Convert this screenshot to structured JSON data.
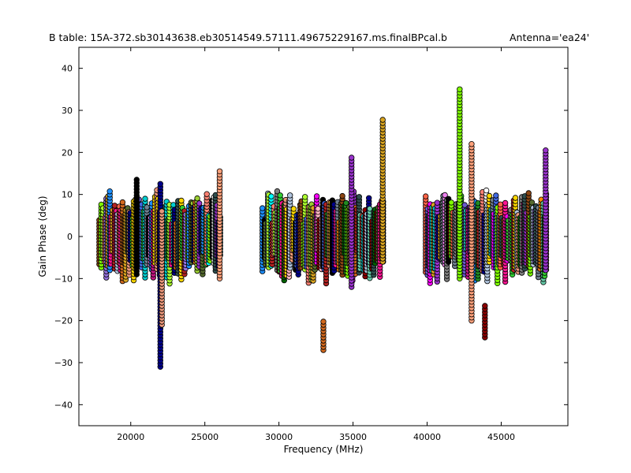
{
  "page": {
    "title_left": "B table: 15A-372.sb30143638.eb30514549.57111.49675229167.ms.finalBPcal.b",
    "title_right": "Antenna='ea24'"
  },
  "chart_data": {
    "type": "scatter",
    "xlabel": "Frequency (MHz)",
    "ylabel": "Gain Phase (deg)",
    "xlim": [
      16500,
      49500
    ],
    "ylim": [
      -45,
      45
    ],
    "xticks": [
      20000,
      25000,
      30000,
      35000,
      40000,
      45000
    ],
    "xtick_labels": [
      "20000",
      "25000",
      "30000",
      "35000",
      "40000",
      "45000"
    ],
    "yticks": [
      -40,
      -30,
      -20,
      -10,
      0,
      10,
      20,
      30,
      40
    ],
    "ytick_labels": [
      "−40",
      "−30",
      "−20",
      "−10",
      "0",
      "10",
      "20",
      "30",
      "40"
    ],
    "grid": false,
    "marker": "circle",
    "marker_edge_color": "#000000",
    "frequency_bands_mhz": [
      [
        17900,
        26100
      ],
      [
        28900,
        37100
      ],
      [
        39900,
        48100
      ]
    ],
    "typical_phase_range_deg": [
      -8,
      9
    ],
    "series_colors": [
      "#b0c4de",
      "#ffffff",
      "#000000",
      "#228b22",
      "#00008b",
      "#ff8c00",
      "#9932cc",
      "#7fff00",
      "#20b2aa",
      "#ff1493",
      "#808080",
      "#ffa07a",
      "#00ced1",
      "#8b4513",
      "#4169e1",
      "#9370db",
      "#ffd700",
      "#fa8072",
      "#708090",
      "#b22222",
      "#006400",
      "#ffb6c1",
      "#00ffff",
      "#ee82ee",
      "#8b0000",
      "#adff2f",
      "#daa520",
      "#1e90ff",
      "#d2691e",
      "#32cd32",
      "#c71585",
      "#ff00ff",
      "#9acd32",
      "#6a5acd",
      "#000080",
      "#2f4f4f",
      "#e9967a",
      "#556b2f",
      "#ff6347",
      "#66cdaa"
    ],
    "notable_excursions": [
      {
        "x": 20400,
        "y_min": -9,
        "y_max": 14,
        "color": "#000000"
      },
      {
        "x": 22000,
        "y_min": -31,
        "y_max": 13,
        "color": "#00008b"
      },
      {
        "x": 22100,
        "y_min": -21,
        "y_max": 6,
        "color": "#e9967a"
      },
      {
        "x": 26000,
        "y_min": -10,
        "y_max": 16,
        "color": "#ffa07a"
      },
      {
        "x": 33000,
        "y_min": -27,
        "y_max": -20,
        "color": "#d2691e"
      },
      {
        "x": 34900,
        "y_min": -12,
        "y_max": 19,
        "color": "#9932cc"
      },
      {
        "x": 37000,
        "y_min": -6,
        "y_max": 28,
        "color": "#daa520"
      },
      {
        "x": 42200,
        "y_min": -10,
        "y_max": 35,
        "color": "#7fff00"
      },
      {
        "x": 43000,
        "y_min": -20,
        "y_max": 22,
        "color": "#ffa07a"
      },
      {
        "x": 43900,
        "y_min": -24,
        "y_max": -16,
        "color": "#8b0000"
      },
      {
        "x": 48000,
        "y_min": -8,
        "y_max": 21,
        "color": "#9932cc"
      }
    ]
  }
}
